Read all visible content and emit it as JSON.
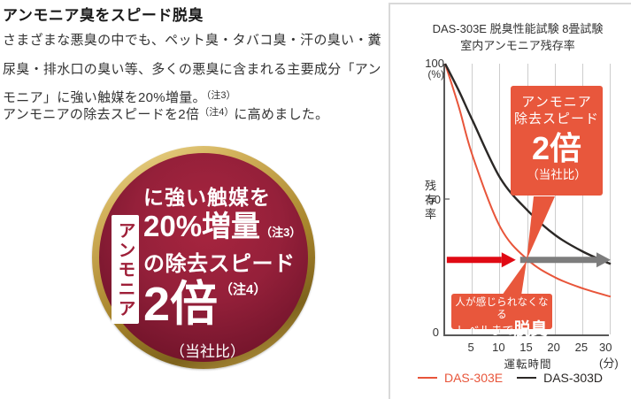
{
  "left_column": {
    "heading": "アンモニア臭をスピード脱臭",
    "paragraph1": "さまざまな悪臭の中でも、ペット臭・タバコ臭・汗の臭い・糞尿臭・排水口の臭い等、多くの悪臭に含まれる主要成分「アンモニア」に強い触媒を20%増量。",
    "paragraph1_note": "（注3）",
    "paragraph2_pre": "アンモニアの除去スピードを2倍",
    "paragraph2_note": "（注4）",
    "paragraph2_post": "に高めました。",
    "badge": {
      "vertical_label": "アンモニア",
      "line1": "に強い触媒を",
      "line2_big": "20%増量",
      "line2_note": "（注3）",
      "line3": "の除去スピード",
      "line4_big": "2倍",
      "line4_note": "（注4）",
      "line5": "（当社比）",
      "ring_color": "#c3a04b",
      "inner_color": "#8e1b33",
      "label_text_color": "#9e1f38"
    }
  },
  "chart_data": {
    "type": "line",
    "title": "DAS-303E 脱臭性能試験 8畳試験",
    "subtitle": "室内アンモニア残存率",
    "ylabel": "残存率",
    "y_top_label": "100",
    "y_unit": "(%)",
    "y_mid_label": "50",
    "y_bottom_label": "0",
    "xlabel": "運転時間",
    "x_unit": "(分)",
    "x_ticks": [
      5,
      10,
      15,
      20,
      25
    ],
    "x_last_tick": "30",
    "xlim": [
      0,
      30
    ],
    "ylim": [
      0,
      100
    ],
    "grid": "vertical-only",
    "axis_color": "#595959",
    "grid_color": "#cdcdcd",
    "series": [
      {
        "name": "DAS-303E",
        "color": "#e8553a",
        "width": 2,
        "x": [
          0,
          2.5,
          5,
          10,
          15,
          20,
          25,
          30
        ],
        "values": [
          100,
          84,
          66,
          40,
          28,
          21.5,
          17.5,
          14.5
        ]
      },
      {
        "name": "DAS-303D",
        "color": "#2b2826",
        "width": 2.4,
        "x": [
          0,
          2.5,
          5,
          10,
          15,
          20,
          25,
          30
        ],
        "values": [
          100,
          90,
          79,
          58,
          46,
          37,
          31,
          26.5
        ]
      }
    ],
    "odor_threshold_percent": 28,
    "arrows": [
      {
        "name": "das303e-time-arrow",
        "color": "#e00a14",
        "from_min": 0.3,
        "to_min": 12.8,
        "at_percent": 28
      },
      {
        "name": "das303d-time-arrow",
        "color": "#7d7d7d",
        "from_min": 13.6,
        "to_min": 30,
        "at_percent": 28
      }
    ],
    "callout_top": {
      "bg": "#e8573c",
      "line1": "アンモニア",
      "line2": "除去スピード",
      "big": "2倍",
      "note": "（当社比）"
    },
    "callout_bottom": {
      "bg": "#e8573c",
      "line1": "人が感じられなくなる",
      "line2_pre": "レベルまで",
      "line2_big": "脱臭"
    },
    "legend": [
      {
        "label": "DAS-303E",
        "color": "#e8553a"
      },
      {
        "label": "DAS-303D",
        "color": "#2b2826"
      }
    ],
    "legend_position": "bottom"
  }
}
